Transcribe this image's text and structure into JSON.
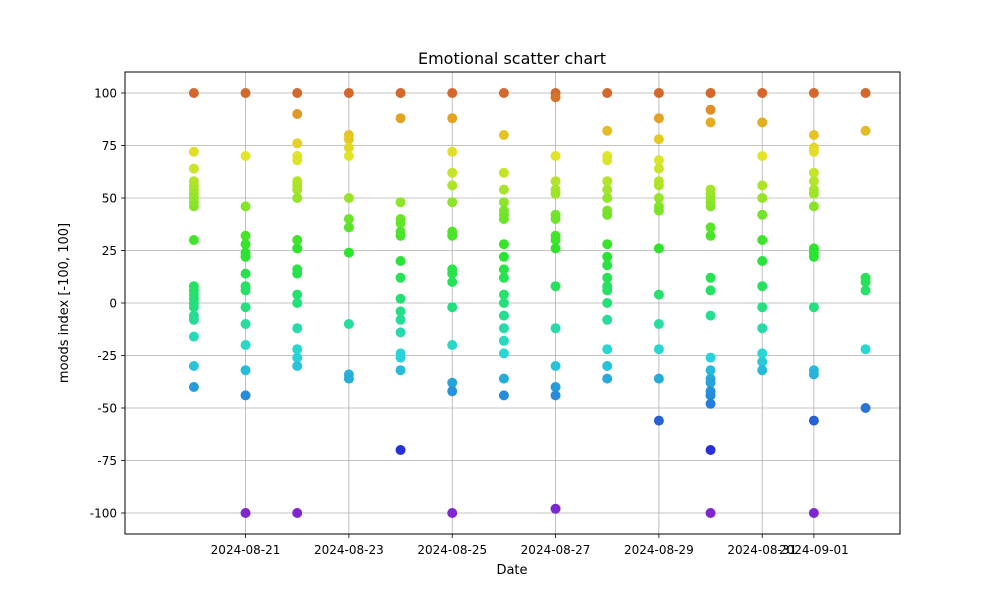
{
  "chart_data": {
    "type": "scatter",
    "title": "Emotional scatter chart",
    "xlabel": "Date",
    "ylabel": "moods index [-100, 100]",
    "xlim": [
      "2024-08-18T16:00",
      "2024-09-02T16:00"
    ],
    "ylim": [
      -110,
      110
    ],
    "x_ticks": [
      "2024-08-21",
      "2024-08-23",
      "2024-08-25",
      "2024-08-27",
      "2024-08-29",
      "2024-08-31",
      "2024-09-01"
    ],
    "y_ticks": [
      -100,
      -75,
      -50,
      -25,
      0,
      25,
      50,
      75,
      100
    ],
    "grid": true,
    "legend": "none",
    "color_scale": "by mood value: violet (-100) through blue, cyan, green, yellow to orange (100)",
    "series": [
      {
        "points": [
          {
            "x": "2024-08-20",
            "y": 100
          },
          {
            "x": "2024-08-20",
            "y": 72
          },
          {
            "x": "2024-08-20",
            "y": 64
          },
          {
            "x": "2024-08-20",
            "y": 58
          },
          {
            "x": "2024-08-20",
            "y": 56
          },
          {
            "x": "2024-08-20",
            "y": 54
          },
          {
            "x": "2024-08-20",
            "y": 52
          },
          {
            "x": "2024-08-20",
            "y": 50
          },
          {
            "x": "2024-08-20",
            "y": 48
          },
          {
            "x": "2024-08-20",
            "y": 46
          },
          {
            "x": "2024-08-20",
            "y": 30
          },
          {
            "x": "2024-08-20",
            "y": 8
          },
          {
            "x": "2024-08-20",
            "y": 6
          },
          {
            "x": "2024-08-20",
            "y": 4
          },
          {
            "x": "2024-08-20",
            "y": 2
          },
          {
            "x": "2024-08-20",
            "y": 0
          },
          {
            "x": "2024-08-20",
            "y": -2
          },
          {
            "x": "2024-08-20",
            "y": -6
          },
          {
            "x": "2024-08-20",
            "y": -8
          },
          {
            "x": "2024-08-20",
            "y": -16
          },
          {
            "x": "2024-08-20",
            "y": -30
          },
          {
            "x": "2024-08-20",
            "y": -40
          },
          {
            "x": "2024-08-21",
            "y": 100
          },
          {
            "x": "2024-08-21",
            "y": 70
          },
          {
            "x": "2024-08-21",
            "y": 46
          },
          {
            "x": "2024-08-21",
            "y": 32
          },
          {
            "x": "2024-08-21",
            "y": 28
          },
          {
            "x": "2024-08-21",
            "y": 24
          },
          {
            "x": "2024-08-21",
            "y": 22
          },
          {
            "x": "2024-08-21",
            "y": 14
          },
          {
            "x": "2024-08-21",
            "y": 8
          },
          {
            "x": "2024-08-21",
            "y": 6
          },
          {
            "x": "2024-08-21",
            "y": -2
          },
          {
            "x": "2024-08-21",
            "y": -10
          },
          {
            "x": "2024-08-21",
            "y": -20
          },
          {
            "x": "2024-08-21",
            "y": -32
          },
          {
            "x": "2024-08-21",
            "y": -44
          },
          {
            "x": "2024-08-21",
            "y": -100
          },
          {
            "x": "2024-08-22",
            "y": 100
          },
          {
            "x": "2024-08-22",
            "y": 90
          },
          {
            "x": "2024-08-22",
            "y": 76
          },
          {
            "x": "2024-08-22",
            "y": 70
          },
          {
            "x": "2024-08-22",
            "y": 68
          },
          {
            "x": "2024-08-22",
            "y": 58
          },
          {
            "x": "2024-08-22",
            "y": 56
          },
          {
            "x": "2024-08-22",
            "y": 54
          },
          {
            "x": "2024-08-22",
            "y": 50
          },
          {
            "x": "2024-08-22",
            "y": 30
          },
          {
            "x": "2024-08-22",
            "y": 26
          },
          {
            "x": "2024-08-22",
            "y": 16
          },
          {
            "x": "2024-08-22",
            "y": 14
          },
          {
            "x": "2024-08-22",
            "y": 4
          },
          {
            "x": "2024-08-22",
            "y": 0
          },
          {
            "x": "2024-08-22",
            "y": -12
          },
          {
            "x": "2024-08-22",
            "y": -22
          },
          {
            "x": "2024-08-22",
            "y": -26
          },
          {
            "x": "2024-08-22",
            "y": -30
          },
          {
            "x": "2024-08-22",
            "y": -100
          },
          {
            "x": "2024-08-23",
            "y": 100
          },
          {
            "x": "2024-08-23",
            "y": 80
          },
          {
            "x": "2024-08-23",
            "y": 78
          },
          {
            "x": "2024-08-23",
            "y": 74
          },
          {
            "x": "2024-08-23",
            "y": 70
          },
          {
            "x": "2024-08-23",
            "y": 50
          },
          {
            "x": "2024-08-23",
            "y": 40
          },
          {
            "x": "2024-08-23",
            "y": 36
          },
          {
            "x": "2024-08-23",
            "y": 24
          },
          {
            "x": "2024-08-23",
            "y": -10
          },
          {
            "x": "2024-08-23",
            "y": -34
          },
          {
            "x": "2024-08-23",
            "y": -36
          },
          {
            "x": "2024-08-24",
            "y": 100
          },
          {
            "x": "2024-08-24",
            "y": 88
          },
          {
            "x": "2024-08-24",
            "y": 48
          },
          {
            "x": "2024-08-24",
            "y": 40
          },
          {
            "x": "2024-08-24",
            "y": 38
          },
          {
            "x": "2024-08-24",
            "y": 34
          },
          {
            "x": "2024-08-24",
            "y": 32
          },
          {
            "x": "2024-08-24",
            "y": 20
          },
          {
            "x": "2024-08-24",
            "y": 12
          },
          {
            "x": "2024-08-24",
            "y": 2
          },
          {
            "x": "2024-08-24",
            "y": -4
          },
          {
            "x": "2024-08-24",
            "y": -8
          },
          {
            "x": "2024-08-24",
            "y": -14
          },
          {
            "x": "2024-08-24",
            "y": -24
          },
          {
            "x": "2024-08-24",
            "y": -26
          },
          {
            "x": "2024-08-24",
            "y": -32
          },
          {
            "x": "2024-08-24",
            "y": -70
          },
          {
            "x": "2024-08-25",
            "y": 100
          },
          {
            "x": "2024-08-25",
            "y": 88
          },
          {
            "x": "2024-08-25",
            "y": 72
          },
          {
            "x": "2024-08-25",
            "y": 62
          },
          {
            "x": "2024-08-25",
            "y": 56
          },
          {
            "x": "2024-08-25",
            "y": 48
          },
          {
            "x": "2024-08-25",
            "y": 34
          },
          {
            "x": "2024-08-25",
            "y": 32
          },
          {
            "x": "2024-08-25",
            "y": 16
          },
          {
            "x": "2024-08-25",
            "y": 14
          },
          {
            "x": "2024-08-25",
            "y": 10
          },
          {
            "x": "2024-08-25",
            "y": -2
          },
          {
            "x": "2024-08-25",
            "y": -20
          },
          {
            "x": "2024-08-25",
            "y": -38
          },
          {
            "x": "2024-08-25",
            "y": -42
          },
          {
            "x": "2024-08-25",
            "y": -100
          },
          {
            "x": "2024-08-26",
            "y": 100
          },
          {
            "x": "2024-08-26",
            "y": 80
          },
          {
            "x": "2024-08-26",
            "y": 62
          },
          {
            "x": "2024-08-26",
            "y": 54
          },
          {
            "x": "2024-08-26",
            "y": 48
          },
          {
            "x": "2024-08-26",
            "y": 44
          },
          {
            "x": "2024-08-26",
            "y": 42
          },
          {
            "x": "2024-08-26",
            "y": 40
          },
          {
            "x": "2024-08-26",
            "y": 28
          },
          {
            "x": "2024-08-26",
            "y": 22
          },
          {
            "x": "2024-08-26",
            "y": 16
          },
          {
            "x": "2024-08-26",
            "y": 12
          },
          {
            "x": "2024-08-26",
            "y": 4
          },
          {
            "x": "2024-08-26",
            "y": 0
          },
          {
            "x": "2024-08-26",
            "y": -6
          },
          {
            "x": "2024-08-26",
            "y": -12
          },
          {
            "x": "2024-08-26",
            "y": -18
          },
          {
            "x": "2024-08-26",
            "y": -24
          },
          {
            "x": "2024-08-26",
            "y": -36
          },
          {
            "x": "2024-08-26",
            "y": -44
          },
          {
            "x": "2024-08-27",
            "y": 100
          },
          {
            "x": "2024-08-27",
            "y": 98
          },
          {
            "x": "2024-08-27",
            "y": 70
          },
          {
            "x": "2024-08-27",
            "y": 58
          },
          {
            "x": "2024-08-27",
            "y": 54
          },
          {
            "x": "2024-08-27",
            "y": 52
          },
          {
            "x": "2024-08-27",
            "y": 42
          },
          {
            "x": "2024-08-27",
            "y": 40
          },
          {
            "x": "2024-08-27",
            "y": 32
          },
          {
            "x": "2024-08-27",
            "y": 30
          },
          {
            "x": "2024-08-27",
            "y": 26
          },
          {
            "x": "2024-08-27",
            "y": 8
          },
          {
            "x": "2024-08-27",
            "y": -12
          },
          {
            "x": "2024-08-27",
            "y": -30
          },
          {
            "x": "2024-08-27",
            "y": -40
          },
          {
            "x": "2024-08-27",
            "y": -44
          },
          {
            "x": "2024-08-27",
            "y": -98
          },
          {
            "x": "2024-08-28",
            "y": 100
          },
          {
            "x": "2024-08-28",
            "y": 82
          },
          {
            "x": "2024-08-28",
            "y": 70
          },
          {
            "x": "2024-08-28",
            "y": 68
          },
          {
            "x": "2024-08-28",
            "y": 58
          },
          {
            "x": "2024-08-28",
            "y": 54
          },
          {
            "x": "2024-08-28",
            "y": 50
          },
          {
            "x": "2024-08-28",
            "y": 44
          },
          {
            "x": "2024-08-28",
            "y": 42
          },
          {
            "x": "2024-08-28",
            "y": 28
          },
          {
            "x": "2024-08-28",
            "y": 22
          },
          {
            "x": "2024-08-28",
            "y": 18
          },
          {
            "x": "2024-08-28",
            "y": 12
          },
          {
            "x": "2024-08-28",
            "y": 8
          },
          {
            "x": "2024-08-28",
            "y": 6
          },
          {
            "x": "2024-08-28",
            "y": 0
          },
          {
            "x": "2024-08-28",
            "y": -8
          },
          {
            "x": "2024-08-28",
            "y": -22
          },
          {
            "x": "2024-08-28",
            "y": -30
          },
          {
            "x": "2024-08-28",
            "y": -36
          },
          {
            "x": "2024-08-29",
            "y": 100
          },
          {
            "x": "2024-08-29",
            "y": 88
          },
          {
            "x": "2024-08-29",
            "y": 78
          },
          {
            "x": "2024-08-29",
            "y": 68
          },
          {
            "x": "2024-08-29",
            "y": 64
          },
          {
            "x": "2024-08-29",
            "y": 58
          },
          {
            "x": "2024-08-29",
            "y": 56
          },
          {
            "x": "2024-08-29",
            "y": 50
          },
          {
            "x": "2024-08-29",
            "y": 46
          },
          {
            "x": "2024-08-29",
            "y": 44
          },
          {
            "x": "2024-08-29",
            "y": 26
          },
          {
            "x": "2024-08-29",
            "y": 4
          },
          {
            "x": "2024-08-29",
            "y": -10
          },
          {
            "x": "2024-08-29",
            "y": -22
          },
          {
            "x": "2024-08-29",
            "y": -36
          },
          {
            "x": "2024-08-29",
            "y": -56
          },
          {
            "x": "2024-08-30",
            "y": 100
          },
          {
            "x": "2024-08-30",
            "y": 92
          },
          {
            "x": "2024-08-30",
            "y": 86
          },
          {
            "x": "2024-08-30",
            "y": 54
          },
          {
            "x": "2024-08-30",
            "y": 52
          },
          {
            "x": "2024-08-30",
            "y": 50
          },
          {
            "x": "2024-08-30",
            "y": 48
          },
          {
            "x": "2024-08-30",
            "y": 46
          },
          {
            "x": "2024-08-30",
            "y": 36
          },
          {
            "x": "2024-08-30",
            "y": 32
          },
          {
            "x": "2024-08-30",
            "y": 12
          },
          {
            "x": "2024-08-30",
            "y": 6
          },
          {
            "x": "2024-08-30",
            "y": -6
          },
          {
            "x": "2024-08-30",
            "y": -26
          },
          {
            "x": "2024-08-30",
            "y": -32
          },
          {
            "x": "2024-08-30",
            "y": -36
          },
          {
            "x": "2024-08-30",
            "y": -38
          },
          {
            "x": "2024-08-30",
            "y": -42
          },
          {
            "x": "2024-08-30",
            "y": -44
          },
          {
            "x": "2024-08-30",
            "y": -48
          },
          {
            "x": "2024-08-30",
            "y": -70
          },
          {
            "x": "2024-08-30",
            "y": -100
          },
          {
            "x": "2024-08-31",
            "y": 100
          },
          {
            "x": "2024-08-31",
            "y": 86
          },
          {
            "x": "2024-08-31",
            "y": 70
          },
          {
            "x": "2024-08-31",
            "y": 56
          },
          {
            "x": "2024-08-31",
            "y": 50
          },
          {
            "x": "2024-08-31",
            "y": 42
          },
          {
            "x": "2024-08-31",
            "y": 30
          },
          {
            "x": "2024-08-31",
            "y": 20
          },
          {
            "x": "2024-08-31",
            "y": 8
          },
          {
            "x": "2024-08-31",
            "y": -2
          },
          {
            "x": "2024-08-31",
            "y": -12
          },
          {
            "x": "2024-08-31",
            "y": -24
          },
          {
            "x": "2024-08-31",
            "y": -28
          },
          {
            "x": "2024-08-31",
            "y": -32
          },
          {
            "x": "2024-09-01",
            "y": 100
          },
          {
            "x": "2024-09-01",
            "y": 80
          },
          {
            "x": "2024-09-01",
            "y": 74
          },
          {
            "x": "2024-09-01",
            "y": 72
          },
          {
            "x": "2024-09-01",
            "y": 62
          },
          {
            "x": "2024-09-01",
            "y": 58
          },
          {
            "x": "2024-09-01",
            "y": 54
          },
          {
            "x": "2024-09-01",
            "y": 52
          },
          {
            "x": "2024-09-01",
            "y": 46
          },
          {
            "x": "2024-09-01",
            "y": 26
          },
          {
            "x": "2024-09-01",
            "y": 24
          },
          {
            "x": "2024-09-01",
            "y": 22
          },
          {
            "x": "2024-09-01",
            "y": -2
          },
          {
            "x": "2024-09-01",
            "y": -32
          },
          {
            "x": "2024-09-01",
            "y": -34
          },
          {
            "x": "2024-09-01",
            "y": -56
          },
          {
            "x": "2024-09-01",
            "y": -100
          },
          {
            "x": "2024-09-02",
            "y": 100
          },
          {
            "x": "2024-09-02",
            "y": 82
          },
          {
            "x": "2024-09-02",
            "y": 12
          },
          {
            "x": "2024-09-02",
            "y": 10
          },
          {
            "x": "2024-09-02",
            "y": 6
          },
          {
            "x": "2024-09-02",
            "y": -22
          },
          {
            "x": "2024-09-02",
            "y": -50
          }
        ]
      }
    ]
  }
}
